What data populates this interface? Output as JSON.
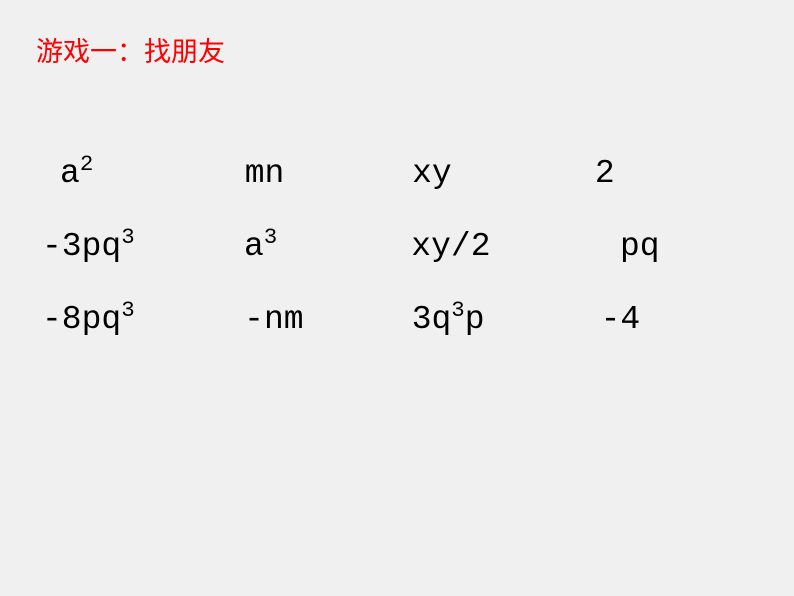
{
  "title": "游戏一：找朋友",
  "colors": {
    "title_color": "#ff0000",
    "text_color": "#000000",
    "background_color": "#f0f0f0"
  },
  "typography": {
    "title_fontsize": 27,
    "cell_fontsize": 33,
    "title_font": "SimSun",
    "cell_font": "Courier New"
  },
  "grid": {
    "rows": [
      [
        {
          "base": "a",
          "sup": "2",
          "prefix": "",
          "suffix": ""
        },
        {
          "base": "mn",
          "sup": "",
          "prefix": "",
          "suffix": ""
        },
        {
          "base": "xy",
          "sup": "",
          "prefix": "",
          "suffix": ""
        },
        {
          "base": "2",
          "sup": "",
          "prefix": "",
          "suffix": ""
        }
      ],
      [
        {
          "base": "pq",
          "sup": "3",
          "prefix": "-3",
          "suffix": ""
        },
        {
          "base": "a",
          "sup": "3",
          "prefix": "",
          "suffix": ""
        },
        {
          "base": "xy/2",
          "sup": "",
          "prefix": "",
          "suffix": ""
        },
        {
          "base": "pq",
          "sup": "",
          "prefix": "",
          "suffix": ""
        }
      ],
      [
        {
          "base": "pq",
          "sup": "3",
          "prefix": "-8",
          "suffix": ""
        },
        {
          "base": "-nm",
          "sup": "",
          "prefix": "",
          "suffix": ""
        },
        {
          "base": "q",
          "sup": "3",
          "prefix": "3",
          "suffix": "p"
        },
        {
          "base": "-4",
          "sup": "",
          "prefix": "",
          "suffix": ""
        }
      ]
    ]
  }
}
